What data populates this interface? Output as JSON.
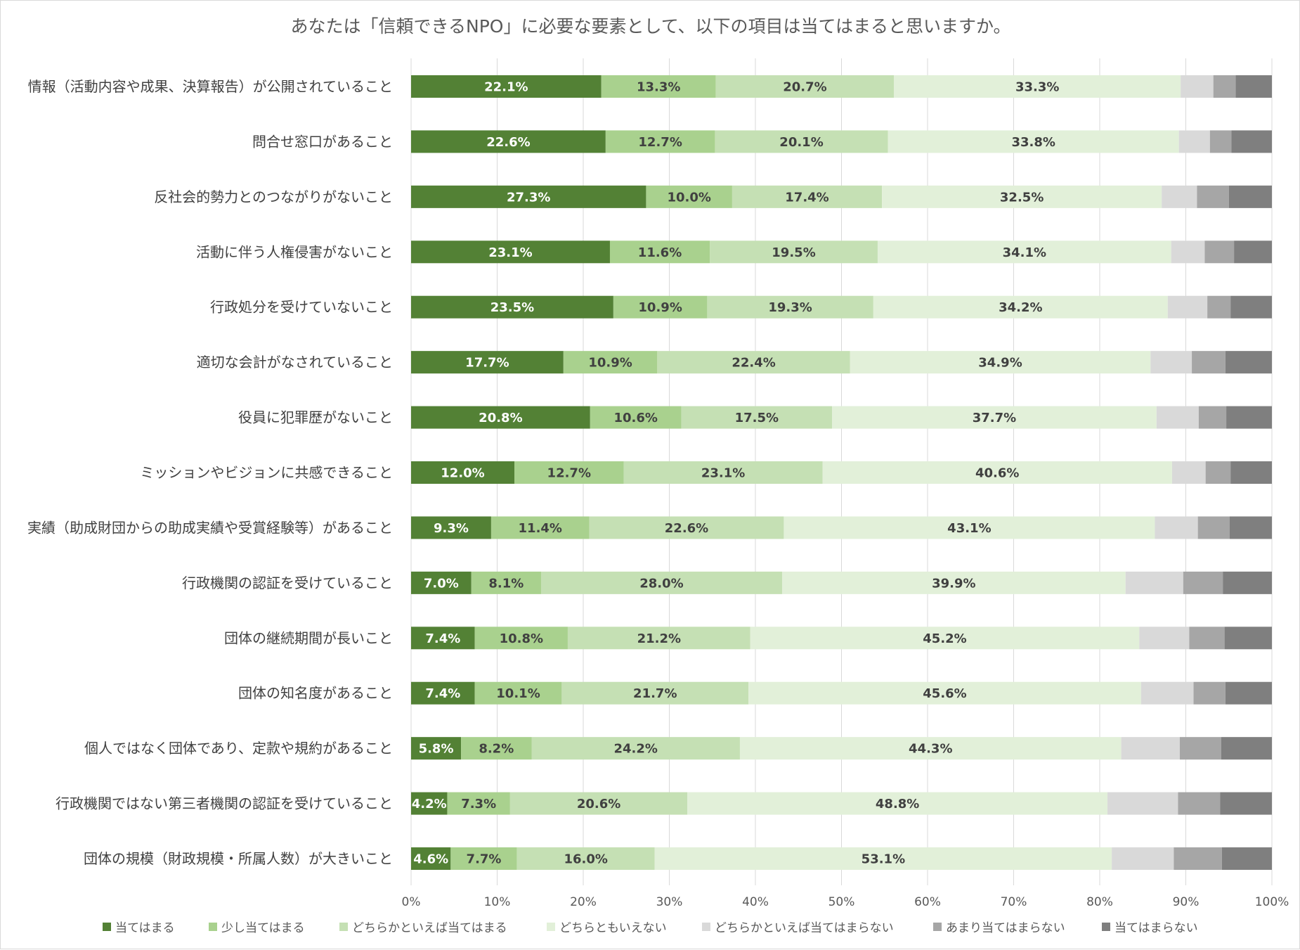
{
  "chart_data": {
    "type": "bar",
    "orientation": "horizontal",
    "stacked": "percent",
    "title": "あなたは「信頼できるNPO」に必要な要素として、以下の項目は当てはまると思いますか。",
    "xlabel": "",
    "ylabel": "",
    "xlim": [
      0,
      100
    ],
    "grid": true,
    "legend_position": "bottom",
    "x_ticks": [
      "0%",
      "10%",
      "20%",
      "30%",
      "40%",
      "50%",
      "60%",
      "70%",
      "80%",
      "90%",
      "100%"
    ],
    "categories": [
      "情報（活動内容や成果、決算報告）が公開されていること",
      "問合せ窓口があること",
      "反社会的勢力とのつながりがないこと",
      "活動に伴う人権侵害がないこと",
      "行政処分を受けていないこと",
      "適切な会計がなされていること",
      "役員に犯罪歴がないこと",
      "ミッションやビジョンに共感できること",
      "実績（助成財団からの助成実績や受賞経験等）があること",
      "行政機関の認証を受けていること",
      "団体の継続期間が長いこと",
      "団体の知名度があること",
      "個人ではなく団体であり、定款や規約があること",
      "行政機関ではない第三者機関の認証を受けていること",
      "団体の規模（財政規模・所属人数）が大きいこと"
    ],
    "series": [
      {
        "name": "当てはまる",
        "color": "#538135",
        "label_color": "#ffffff",
        "values": [
          22.1,
          22.6,
          27.3,
          23.1,
          23.5,
          17.7,
          20.8,
          12.0,
          9.3,
          7.0,
          7.4,
          7.4,
          5.8,
          4.2,
          4.6
        ],
        "labels": [
          "22.1%",
          "22.6%",
          "27.3%",
          "23.1%",
          "23.5%",
          "17.7%",
          "20.8%",
          "12.0%",
          "9.3%",
          "7.0%",
          "7.4%",
          "7.4%",
          "5.8%",
          "4.2%",
          "4.6%"
        ]
      },
      {
        "name": "少し当てはまる",
        "color": "#a9d18e",
        "label_color": "#404040",
        "values": [
          13.3,
          12.7,
          10.0,
          11.6,
          10.9,
          10.9,
          10.6,
          12.7,
          11.4,
          8.1,
          10.8,
          10.1,
          8.2,
          7.3,
          7.7
        ],
        "labels": [
          "13.3%",
          "12.7%",
          "10.0%",
          "11.6%",
          "10.9%",
          "10.9%",
          "10.6%",
          "12.7%",
          "11.4%",
          "8.1%",
          "10.8%",
          "10.1%",
          "8.2%",
          "7.3%",
          "7.7%"
        ]
      },
      {
        "name": "どちらかといえば当てはまる",
        "color": "#c5e0b4",
        "label_color": "#404040",
        "values": [
          20.7,
          20.1,
          17.4,
          19.5,
          19.3,
          22.4,
          17.5,
          23.1,
          22.6,
          28.0,
          21.2,
          21.7,
          24.2,
          20.6,
          16.0
        ],
        "labels": [
          "20.7%",
          "20.1%",
          "17.4%",
          "19.5%",
          "19.3%",
          "22.4%",
          "17.5%",
          "23.1%",
          "22.6%",
          "28.0%",
          "21.2%",
          "21.7%",
          "24.2%",
          "20.6%",
          "16.0%"
        ]
      },
      {
        "name": "どちらともいえない",
        "color": "#e2f0d9",
        "label_color": "#404040",
        "values": [
          33.3,
          33.8,
          32.5,
          34.1,
          34.2,
          34.9,
          37.7,
          40.6,
          43.1,
          39.9,
          45.2,
          45.6,
          44.3,
          48.8,
          53.1
        ],
        "labels": [
          "33.3%",
          "33.8%",
          "32.5%",
          "34.1%",
          "34.2%",
          "34.9%",
          "37.7%",
          "40.6%",
          "43.1%",
          "39.9%",
          "45.2%",
          "45.6%",
          "44.3%",
          "48.8%",
          "53.1%"
        ]
      },
      {
        "name": "どちらかといえば当てはまらない",
        "color": "#d9d9d9",
        "values": [
          3.8,
          3.6,
          4.1,
          3.9,
          4.6,
          4.8,
          4.9,
          3.9,
          5.0,
          6.7,
          5.8,
          6.1,
          6.8,
          8.2,
          7.2
        ]
      },
      {
        "name": "あまり当てはまらない",
        "color": "#a6a6a6",
        "values": [
          2.6,
          2.5,
          3.7,
          3.4,
          2.7,
          3.9,
          3.2,
          2.9,
          3.7,
          4.6,
          4.1,
          3.7,
          4.8,
          4.9,
          5.6
        ]
      },
      {
        "name": "当てはまらない",
        "color": "#7f7f7f",
        "values": [
          4.2,
          4.7,
          5.0,
          4.4,
          4.8,
          5.4,
          5.3,
          4.8,
          4.9,
          5.7,
          5.5,
          5.4,
          5.9,
          6.0,
          5.8
        ]
      }
    ]
  }
}
